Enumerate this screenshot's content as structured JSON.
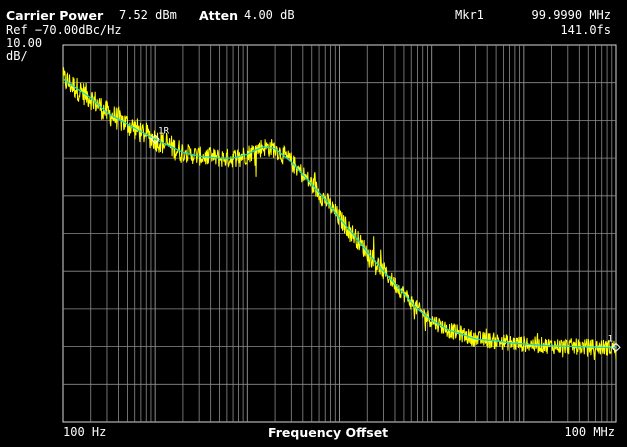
{
  "header": {
    "carrier_label": "Carrier Power",
    "carrier_value": "7.52 dBm",
    "atten_label": "Atten",
    "atten_value": "4.00 dB",
    "marker_label": "Mkr1",
    "marker_freq": "99.9990 MHz",
    "ref_label": "Ref −70.00dBc/Hz",
    "marker_value": "141.0fs",
    "scale_value": "10.00",
    "scale_unit": "dB/"
  },
  "footer": {
    "start_freq": "100 Hz",
    "axis_title": "Frequency Offset",
    "stop_freq": "100 MHz"
  },
  "colors": {
    "background": "#000000",
    "grid": "#8c8c8c",
    "trace_raw": "#ffff00",
    "trace_smoothed": "#19d6c0",
    "text": "#ffffff"
  },
  "chart_data": {
    "type": "line",
    "title": "",
    "xlabel": "Frequency Offset",
    "ylabel": "",
    "x_scale": "log",
    "xlim": [
      100,
      100000000
    ],
    "ylim": [
      -170,
      -70
    ],
    "y_ref_dbc_hz": -70,
    "y_scale_db_per_div": 10,
    "grid": true,
    "markers": [
      {
        "label": "1R",
        "x": 1000,
        "y": -95
      },
      {
        "label": "1",
        "x": 99999000,
        "y": -150.2
      }
    ],
    "series": [
      {
        "x": [
          100,
          150,
          200,
          300,
          500,
          700,
          1000,
          1500,
          2000,
          3000,
          5000,
          7000,
          10000,
          12000,
          15000,
          20000,
          30000,
          50000,
          70000,
          100000,
          150000,
          200000,
          300000,
          500000,
          700000,
          1000000,
          1500000,
          2000000,
          3000000,
          5000000,
          7000000,
          10000000,
          20000000,
          50000000,
          100000000
        ],
        "y": [
          -79,
          -82,
          -84,
          -88,
          -91,
          -93,
          -95,
          -97,
          -98.5,
          -99.5,
          -100,
          -100,
          -99,
          -98,
          -97,
          -97.5,
          -101,
          -107,
          -111,
          -116,
          -121,
          -125,
          -130,
          -136,
          -140,
          -143,
          -145.5,
          -146.5,
          -148,
          -148.5,
          -149,
          -149.3,
          -149.8,
          -150.1,
          -150.3
        ]
      }
    ]
  }
}
